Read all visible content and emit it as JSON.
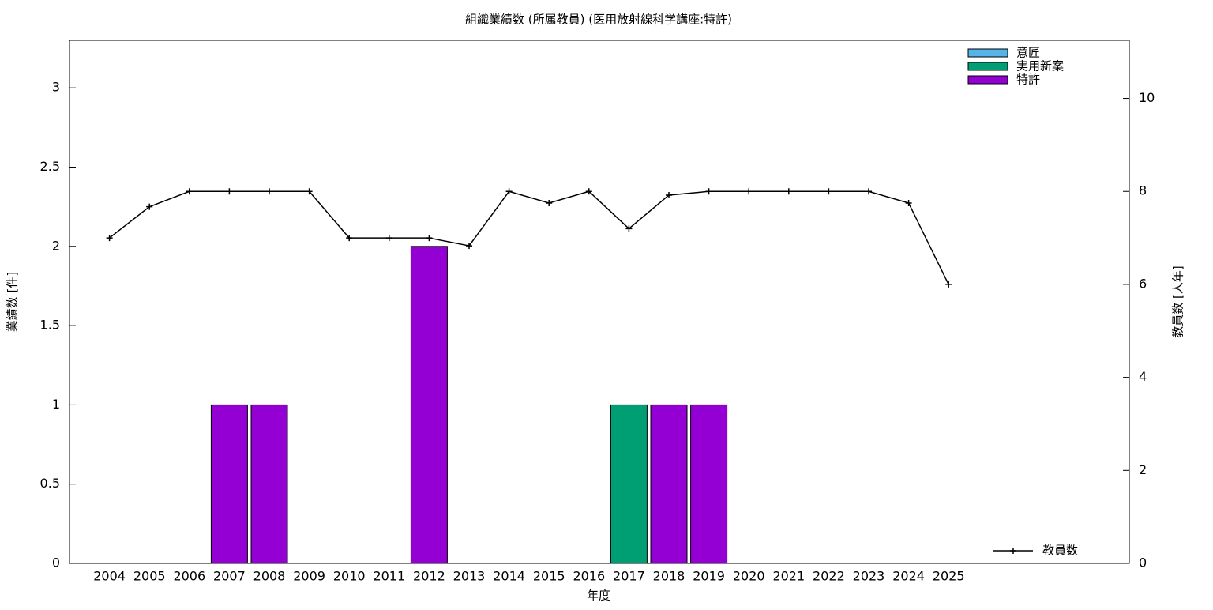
{
  "chart_data": {
    "type": "bar",
    "stacked": true,
    "title": "組織業績数 (所属教員) (医用放射線科学講座:特許)",
    "x_label": "年度",
    "y_label": "業績数 [件]",
    "y2_label": "教員数 [人年]",
    "categories": [
      "2004",
      "2005",
      "2006",
      "2007",
      "2008",
      "2009",
      "2010",
      "2011",
      "2012",
      "2013",
      "2014",
      "2015",
      "2016",
      "2017",
      "2018",
      "2019",
      "2020",
      "2021",
      "2022",
      "2023",
      "2024",
      "2025"
    ],
    "series": [
      {
        "name": "意匠",
        "color": "#56b4e9",
        "values": [
          0,
          0,
          0,
          0,
          0,
          0,
          0,
          0,
          0,
          0,
          0,
          0,
          0,
          0,
          0,
          0,
          0,
          0,
          0,
          0,
          0,
          0
        ]
      },
      {
        "name": "実用新案",
        "color": "#009e73",
        "values": [
          0,
          0,
          0,
          0,
          0,
          0,
          0,
          0,
          0,
          0,
          0,
          0,
          0,
          1,
          0,
          0,
          0,
          0,
          0,
          0,
          0,
          0
        ]
      },
      {
        "name": "特許",
        "color": "#9400d3",
        "values": [
          0,
          0,
          0,
          1,
          1,
          0,
          0,
          0,
          2,
          0,
          0,
          0,
          0,
          0,
          1,
          1,
          0,
          0,
          0,
          0,
          0,
          0
        ]
      },
      {
        "name": "教員数",
        "color": "#000000",
        "axis": "y2",
        "values": [
          7,
          7.67,
          8,
          8,
          8,
          8,
          7,
          7,
          7,
          6.83,
          8,
          7.75,
          8,
          7.2,
          7.92,
          8,
          8,
          8,
          8,
          8,
          7.75,
          6
        ]
      }
    ],
    "ylim": [
      0,
      3.3
    ],
    "yticks": [
      0,
      0.5,
      1,
      1.5,
      2,
      2.5,
      3
    ],
    "y2lim": [
      0,
      11.25
    ],
    "y2ticks": [
      0,
      2,
      4,
      6,
      8,
      10
    ]
  }
}
